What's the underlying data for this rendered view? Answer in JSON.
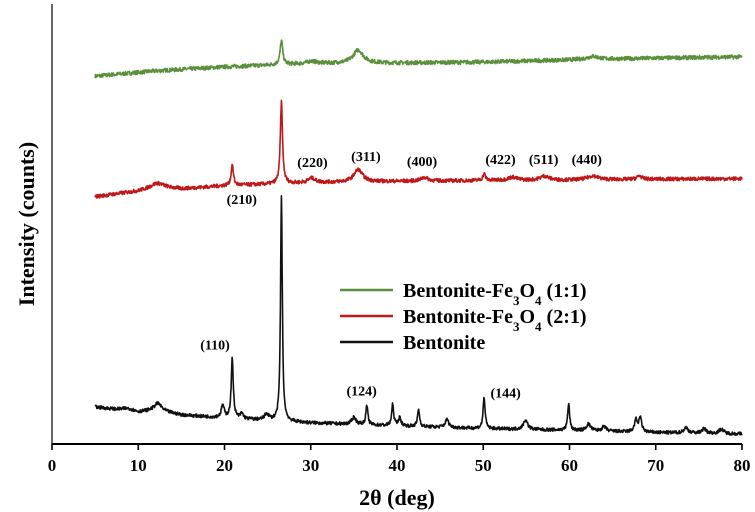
{
  "chart_data": {
    "type": "line",
    "xlabel": "2θ (deg)",
    "ylabel": "Intensity (counts)",
    "xlim": [
      0,
      80
    ],
    "ylim": [
      0,
      100
    ],
    "xticks": [
      0,
      10,
      20,
      30,
      40,
      50,
      60,
      70,
      80
    ],
    "yticks": [],
    "grid": false,
    "legend_position": "center-right",
    "series": [
      {
        "name": "Bentonite-Fe3O4 (1:1)",
        "legend_main": "Bentonite-Fe",
        "legend_sub": "3",
        "legend_mid": "O",
        "legend_sub2": "4",
        "legend_tail": " (1:1)",
        "color": "#5a8f3c",
        "baseline": [
          [
            5,
            83.6
          ],
          [
            12,
            84.8
          ],
          [
            20,
            85.7
          ],
          [
            30,
            86.5
          ],
          [
            40,
            86.6
          ],
          [
            50,
            86.8
          ],
          [
            60,
            87.3
          ],
          [
            70,
            87.7
          ],
          [
            80,
            88.0
          ]
        ],
        "peaks": [
          [
            26.6,
            5.4,
            0.18
          ],
          [
            35.5,
            3.0,
            0.7
          ],
          [
            62.7,
            0.7,
            0.8
          ],
          [
            30.1,
            0.5,
            0.6
          ]
        ],
        "noise": 0.45
      },
      {
        "name": "Bentonite-Fe3O4 (2:1)",
        "legend_main": "Bentonite-Fe",
        "legend_sub": "3",
        "legend_mid": "O",
        "legend_sub2": "4",
        "legend_tail": " (2:1)",
        "color": "#c01818",
        "baseline": [
          [
            5,
            56.2
          ],
          [
            10,
            57.5
          ],
          [
            12,
            58.4
          ],
          [
            15,
            58.0
          ],
          [
            20,
            58.7
          ],
          [
            30,
            59.4
          ],
          [
            40,
            59.7
          ],
          [
            50,
            59.9
          ],
          [
            60,
            60.0
          ],
          [
            70,
            60.2
          ],
          [
            80,
            60.3
          ]
        ],
        "peaks": [
          [
            12.3,
            0.9,
            0.9
          ],
          [
            20.9,
            4.6,
            0.16
          ],
          [
            26.6,
            18.5,
            0.15
          ],
          [
            30.1,
            1.0,
            0.5
          ],
          [
            35.5,
            2.8,
            0.6
          ],
          [
            43.2,
            0.8,
            0.5
          ],
          [
            50.1,
            1.5,
            0.18
          ],
          [
            53.4,
            0.7,
            0.6
          ],
          [
            57.1,
            0.9,
            0.6
          ],
          [
            62.7,
            0.9,
            0.7
          ],
          [
            68.1,
            0.8,
            0.3
          ]
        ],
        "noise": 0.42
      },
      {
        "name": "Bentonite",
        "legend_main": "Bentonite",
        "legend_sub": "",
        "legend_mid": "",
        "legend_sub2": "",
        "legend_tail": "",
        "color": "#111111",
        "baseline": [
          [
            5,
            8.4
          ],
          [
            10,
            7.2
          ],
          [
            12,
            7.7
          ],
          [
            15,
            6.6
          ],
          [
            20,
            5.9
          ],
          [
            30,
            4.8
          ],
          [
            40,
            4.1
          ],
          [
            50,
            3.5
          ],
          [
            60,
            3.1
          ],
          [
            70,
            2.6
          ],
          [
            80,
            2.3
          ]
        ],
        "peaks": [
          [
            8.8,
            0.6,
            0.8
          ],
          [
            12.3,
            1.6,
            0.5
          ],
          [
            19.8,
            2.8,
            0.2
          ],
          [
            20.9,
            13.7,
            0.14
          ],
          [
            22.0,
            1.2,
            0.2
          ],
          [
            24.9,
            1.4,
            0.3
          ],
          [
            26.6,
            51.0,
            0.12
          ],
          [
            35.0,
            1.6,
            0.3
          ],
          [
            36.5,
            4.3,
            0.14
          ],
          [
            39.5,
            4.8,
            0.14
          ],
          [
            40.3,
            1.8,
            0.2
          ],
          [
            42.5,
            3.9,
            0.14
          ],
          [
            45.8,
            1.8,
            0.25
          ],
          [
            50.1,
            7.1,
            0.14
          ],
          [
            54.9,
            2.1,
            0.3
          ],
          [
            59.9,
            6.0,
            0.14
          ],
          [
            62.2,
            1.5,
            0.3
          ],
          [
            64.0,
            1.0,
            0.3
          ],
          [
            67.7,
            2.6,
            0.2
          ],
          [
            68.2,
            3.1,
            0.2
          ],
          [
            73.5,
            1.2,
            0.3
          ],
          [
            75.6,
            1.0,
            0.3
          ],
          [
            77.6,
            1.0,
            0.3
          ]
        ],
        "noise": 0.38
      }
    ],
    "annotations": [
      {
        "text": "(210)",
        "x": 22.0,
        "y": 54.5
      },
      {
        "text": "(110)",
        "x": 18.9,
        "y": 21.5
      },
      {
        "text": "(124)",
        "x": 35.9,
        "y": 11.0
      },
      {
        "text": "(144)",
        "x": 52.6,
        "y": 10.6
      },
      {
        "text": "(220)",
        "x": 30.2,
        "y": 62.9
      },
      {
        "text": "(311)",
        "x": 36.4,
        "y": 64.3
      },
      {
        "text": "(400)",
        "x": 42.9,
        "y": 63.2
      },
      {
        "text": "(422)",
        "x": 52.0,
        "y": 63.6
      },
      {
        "text": "(511)",
        "x": 57.0,
        "y": 63.6
      },
      {
        "text": "(440)",
        "x": 62.0,
        "y": 63.6
      }
    ]
  }
}
